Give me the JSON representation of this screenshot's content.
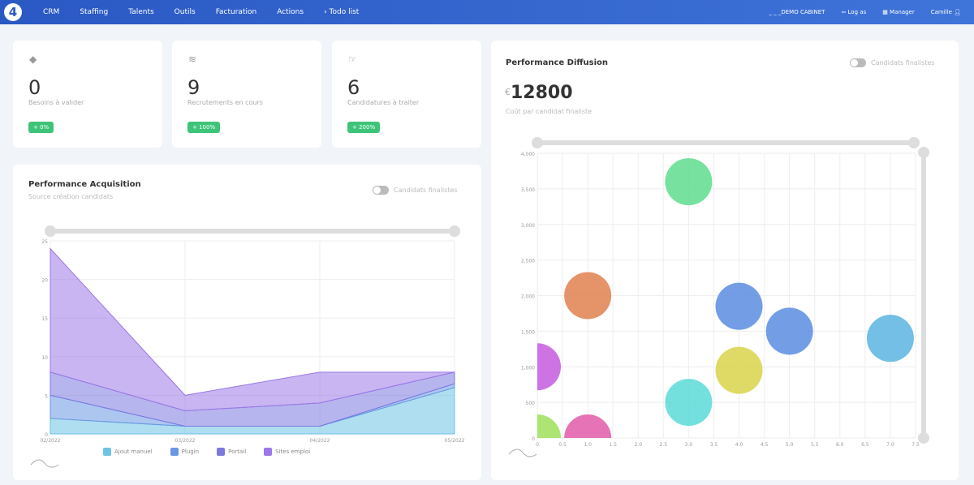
{
  "nav": {
    "logo": "4",
    "items": [
      "CRM",
      "Staffing",
      "Talents",
      "Outils",
      "Facturation",
      "Actions",
      "› Todo list"
    ],
    "cabinet": "_ _ _DEMO CABINET",
    "logas": "Log as",
    "manager": "Manager",
    "user": "Camille"
  },
  "stats": [
    {
      "icon": "layers-icon",
      "value": "0",
      "label": "Besoins à valider",
      "badge": "+ 0%"
    },
    {
      "icon": "stack-icon",
      "value": "9",
      "label": "Recrutements en cours",
      "badge": "+ 100%"
    },
    {
      "icon": "thumb-icon",
      "value": "6",
      "label": "Candidatures à traiter",
      "badge": "+ 200%"
    }
  ],
  "acquisition": {
    "title": "Performance Acquisition",
    "subtitle": "Source création candidats",
    "toggle": "Candidats finalistes"
  },
  "diffusion": {
    "title": "Performance Diffusion",
    "currency": "€",
    "value": "12800",
    "subtitle": "Coût par candidat finaliste",
    "toggle": "Candidats finalistes"
  },
  "chart_data": [
    {
      "type": "area",
      "stacked": true,
      "categories": [
        "02/2022",
        "03/2022",
        "04/2022",
        "05/2022"
      ],
      "ylim": [
        0,
        25
      ],
      "yticks": [
        0,
        5,
        10,
        15,
        20,
        25
      ],
      "series": [
        {
          "name": "Ajout manuel",
          "color": "#6ec3e6",
          "values": [
            2,
            1,
            1,
            6
          ]
        },
        {
          "name": "Plugin",
          "color": "#6a97e3",
          "values": [
            3,
            0,
            0,
            0.5
          ]
        },
        {
          "name": "Portail",
          "color": "#7b79e0",
          "values": [
            3,
            2,
            3,
            1.5
          ]
        },
        {
          "name": "Sites emploi",
          "color": "#9c78e6",
          "values": [
            16,
            2,
            4,
            0
          ]
        }
      ]
    },
    {
      "type": "scatter",
      "bubble": true,
      "xlim": [
        0,
        7.5
      ],
      "ylim": [
        0,
        4000
      ],
      "xticks": [
        "0",
        "0.5",
        "1.0",
        "1.5",
        "2.0",
        "2.5",
        "3.0",
        "3.5",
        "4.0",
        "4.5",
        "5.0",
        "5.5",
        "6.0",
        "6.5",
        "7.0",
        "7.5"
      ],
      "yticks": [
        "0",
        "500",
        "1,000",
        "1,500",
        "2,000",
        "2,500",
        "3,000",
        "3,500",
        "4,000"
      ],
      "points": [
        {
          "x": 0,
          "y": 1000,
          "color": "#c45ade"
        },
        {
          "x": 1,
          "y": 2000,
          "color": "#e0804f"
        },
        {
          "x": 3,
          "y": 3600,
          "color": "#5fdc8e"
        },
        {
          "x": 4,
          "y": 1850,
          "color": "#5a8ce0"
        },
        {
          "x": 5,
          "y": 1500,
          "color": "#5a8ce0"
        },
        {
          "x": 7,
          "y": 1400,
          "color": "#5ab4e0"
        },
        {
          "x": 4,
          "y": 950,
          "color": "#d8d44a"
        },
        {
          "x": 3,
          "y": 500,
          "color": "#5adbd8"
        },
        {
          "x": 1,
          "y": 0,
          "color": "#e05aa8"
        },
        {
          "x": 0,
          "y": 0,
          "color": "#9ee05a"
        }
      ]
    }
  ]
}
